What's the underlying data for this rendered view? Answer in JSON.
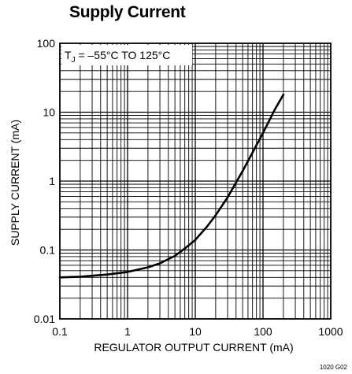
{
  "figure_code": "1020 G02",
  "chart_data": {
    "type": "line",
    "title": "Supply Current",
    "xlabel": "REGULATOR OUTPUT CURRENT (mA)",
    "ylabel": "SUPPLY CURRENT (mA)",
    "x_scale": "log",
    "y_scale": "log",
    "xlim": [
      0.1,
      1000
    ],
    "ylim": [
      0.01,
      100
    ],
    "x_ticks": [
      "0.1",
      "1",
      "10",
      "100",
      "1000"
    ],
    "y_ticks": [
      "0.01",
      "0.1",
      "1",
      "10",
      "100"
    ],
    "grid": true,
    "annotation": {
      "text": "T",
      "sub": "J",
      "rest": " = –55°C TO 125°C"
    },
    "series": [
      {
        "x": [
          0.1,
          0.2,
          0.5,
          1,
          2,
          3,
          5,
          7,
          10,
          15,
          20,
          30,
          50,
          70,
          100,
          150,
          200
        ],
        "y": [
          0.04,
          0.041,
          0.044,
          0.048,
          0.056,
          0.064,
          0.082,
          0.105,
          0.14,
          0.22,
          0.32,
          0.58,
          1.4,
          2.6,
          5.0,
          11,
          18
        ]
      }
    ]
  }
}
